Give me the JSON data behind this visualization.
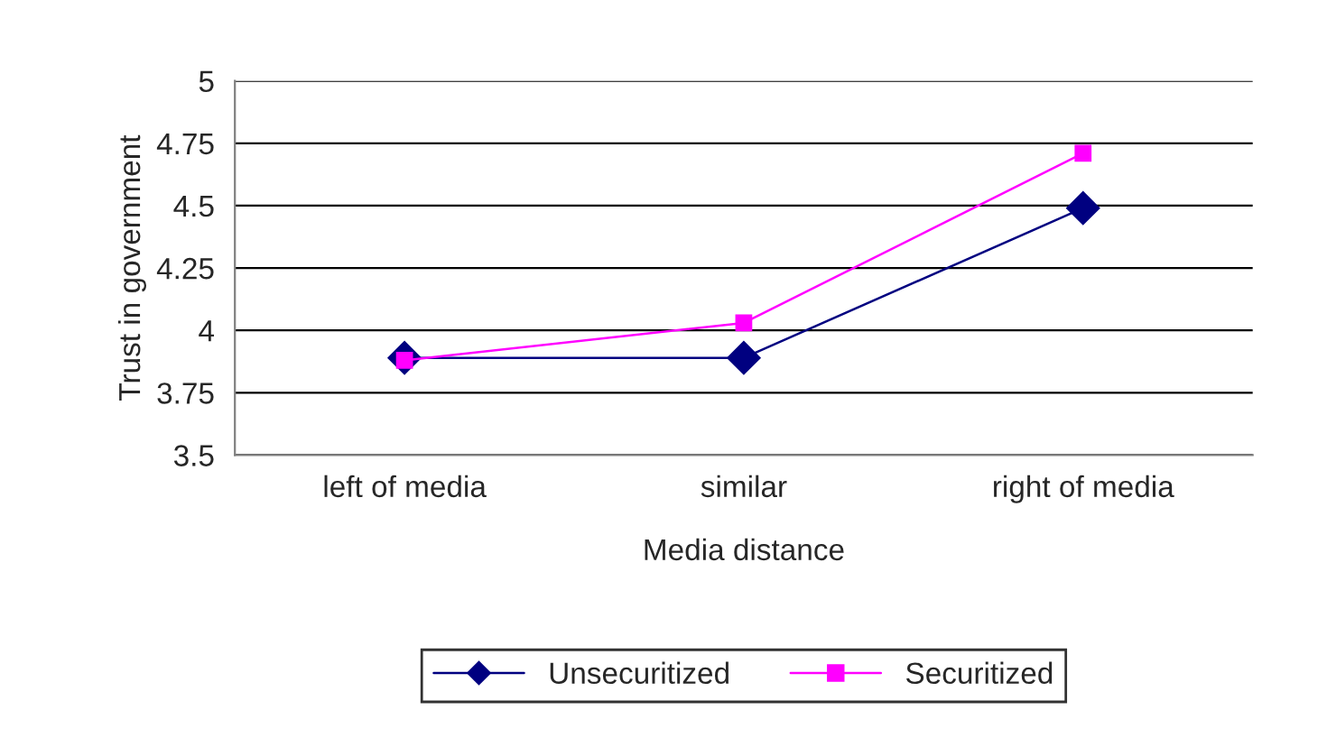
{
  "chart_data": {
    "type": "line",
    "xlabel": "Media distance",
    "ylabel": "Trust in government",
    "categories": [
      "left of media",
      "similar",
      "right of media"
    ],
    "series": [
      {
        "name": "Unsecuritized",
        "color": "#000080",
        "marker": "diamond",
        "values": [
          3.89,
          3.89,
          4.49
        ]
      },
      {
        "name": "Securitized",
        "color": "#ff00ff",
        "marker": "square",
        "values": [
          3.88,
          4.03,
          4.71
        ]
      }
    ],
    "ylim": [
      3.5,
      5
    ],
    "yticks": [
      3.5,
      3.75,
      4,
      4.25,
      4.5,
      4.75,
      5
    ],
    "grid": "y",
    "legend": "bottom",
    "line_style": "solid"
  }
}
